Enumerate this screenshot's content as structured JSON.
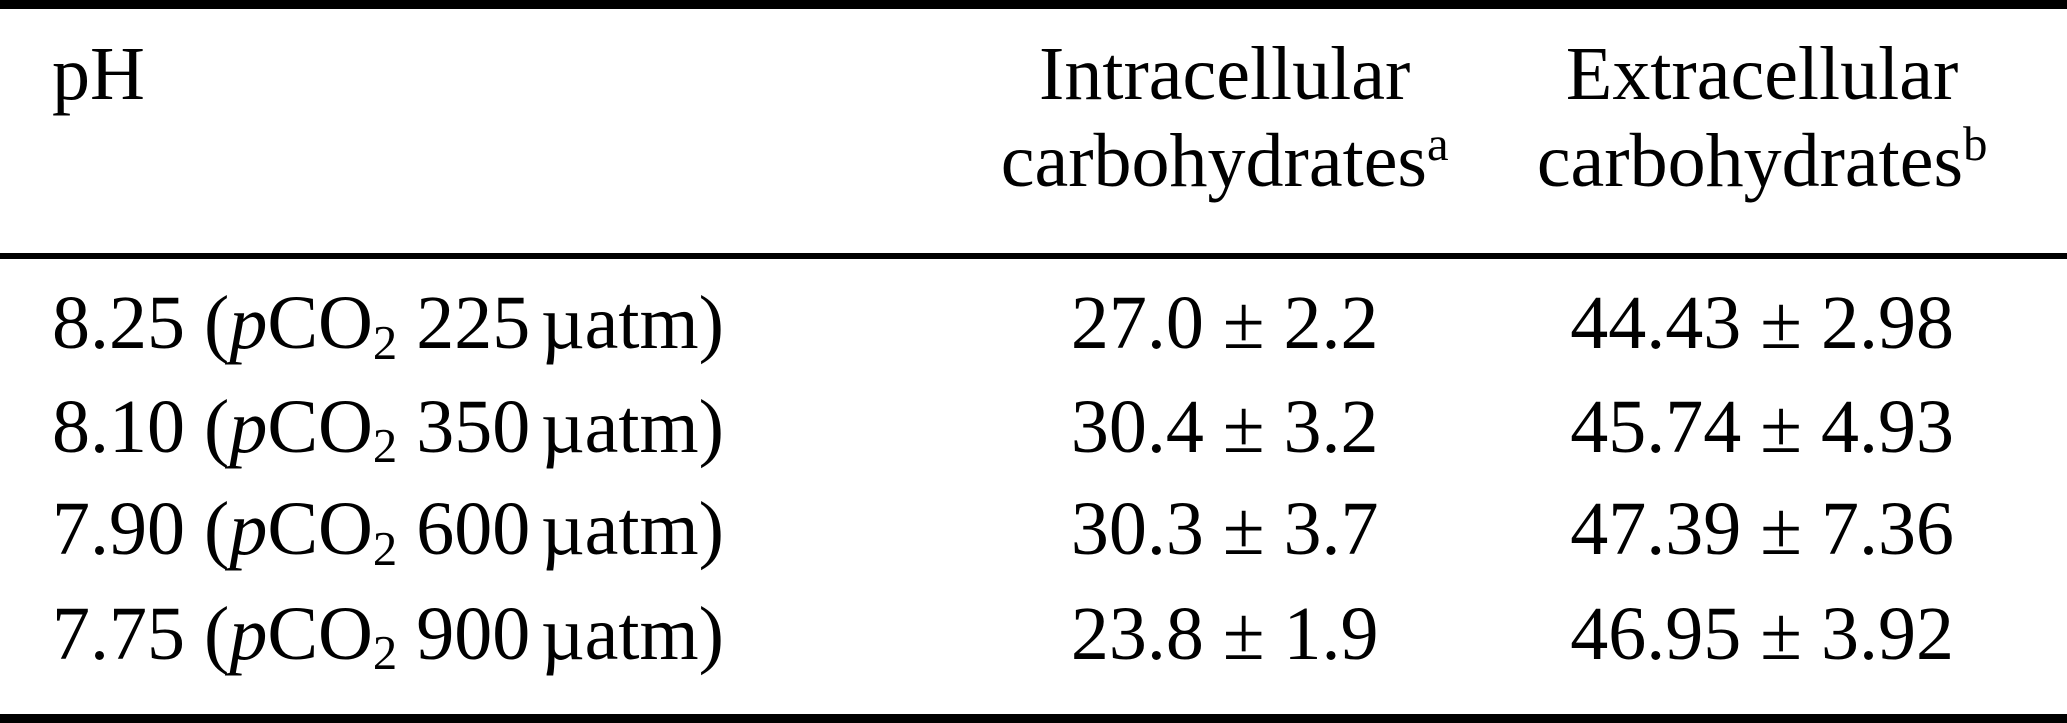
{
  "page": {
    "background_color": "#ffffff",
    "text_color": "#000000"
  },
  "table": {
    "header": {
      "col1": "pH",
      "col2": {
        "line1": "Intracellular",
        "line2": "carbohydrates",
        "superscript": "a"
      },
      "col3": {
        "line1": "Extracellular",
        "line2": "carbohydrates",
        "superscript": "b"
      }
    },
    "fragments": {
      "open_paren": "(",
      "p_italic": "p",
      "co": "CO",
      "sub_two": "2",
      "uatm_close": "µatm)"
    },
    "rows": [
      {
        "ph": "8.25",
        "pco2": "225",
        "intracellular": "27.0 ± 2.2",
        "extracellular": "44.43 ± 2.98"
      },
      {
        "ph": "8.10",
        "pco2": "350",
        "intracellular": "30.4 ± 3.2",
        "extracellular": "45.74 ± 4.93"
      },
      {
        "ph": "7.90",
        "pco2": "600",
        "intracellular": "30.3 ± 3.7",
        "extracellular": "47.39 ± 7.36"
      },
      {
        "ph": "7.75",
        "pco2": "900",
        "intracellular": "23.8 ± 1.9",
        "extracellular": "46.95 ± 3.92"
      }
    ]
  },
  "chart_data": {
    "type": "table",
    "columns": [
      "pH",
      "Intracellular carbohydrates",
      "Extracellular carbohydrates"
    ],
    "rows": [
      {
        "ph": 8.25,
        "pco2_uatm": 225,
        "intracellular_mean": 27.0,
        "intracellular_sd": 2.2,
        "extracellular_mean": 44.43,
        "extracellular_sd": 2.98
      },
      {
        "ph": 8.1,
        "pco2_uatm": 350,
        "intracellular_mean": 30.4,
        "intracellular_sd": 3.2,
        "extracellular_mean": 45.74,
        "extracellular_sd": 4.93
      },
      {
        "ph": 7.9,
        "pco2_uatm": 600,
        "intracellular_mean": 30.3,
        "intracellular_sd": 3.7,
        "extracellular_mean": 47.39,
        "extracellular_sd": 7.36
      },
      {
        "ph": 7.75,
        "pco2_uatm": 900,
        "intracellular_mean": 23.8,
        "intracellular_sd": 1.9,
        "extracellular_mean": 46.95,
        "extracellular_sd": 3.92
      }
    ]
  }
}
